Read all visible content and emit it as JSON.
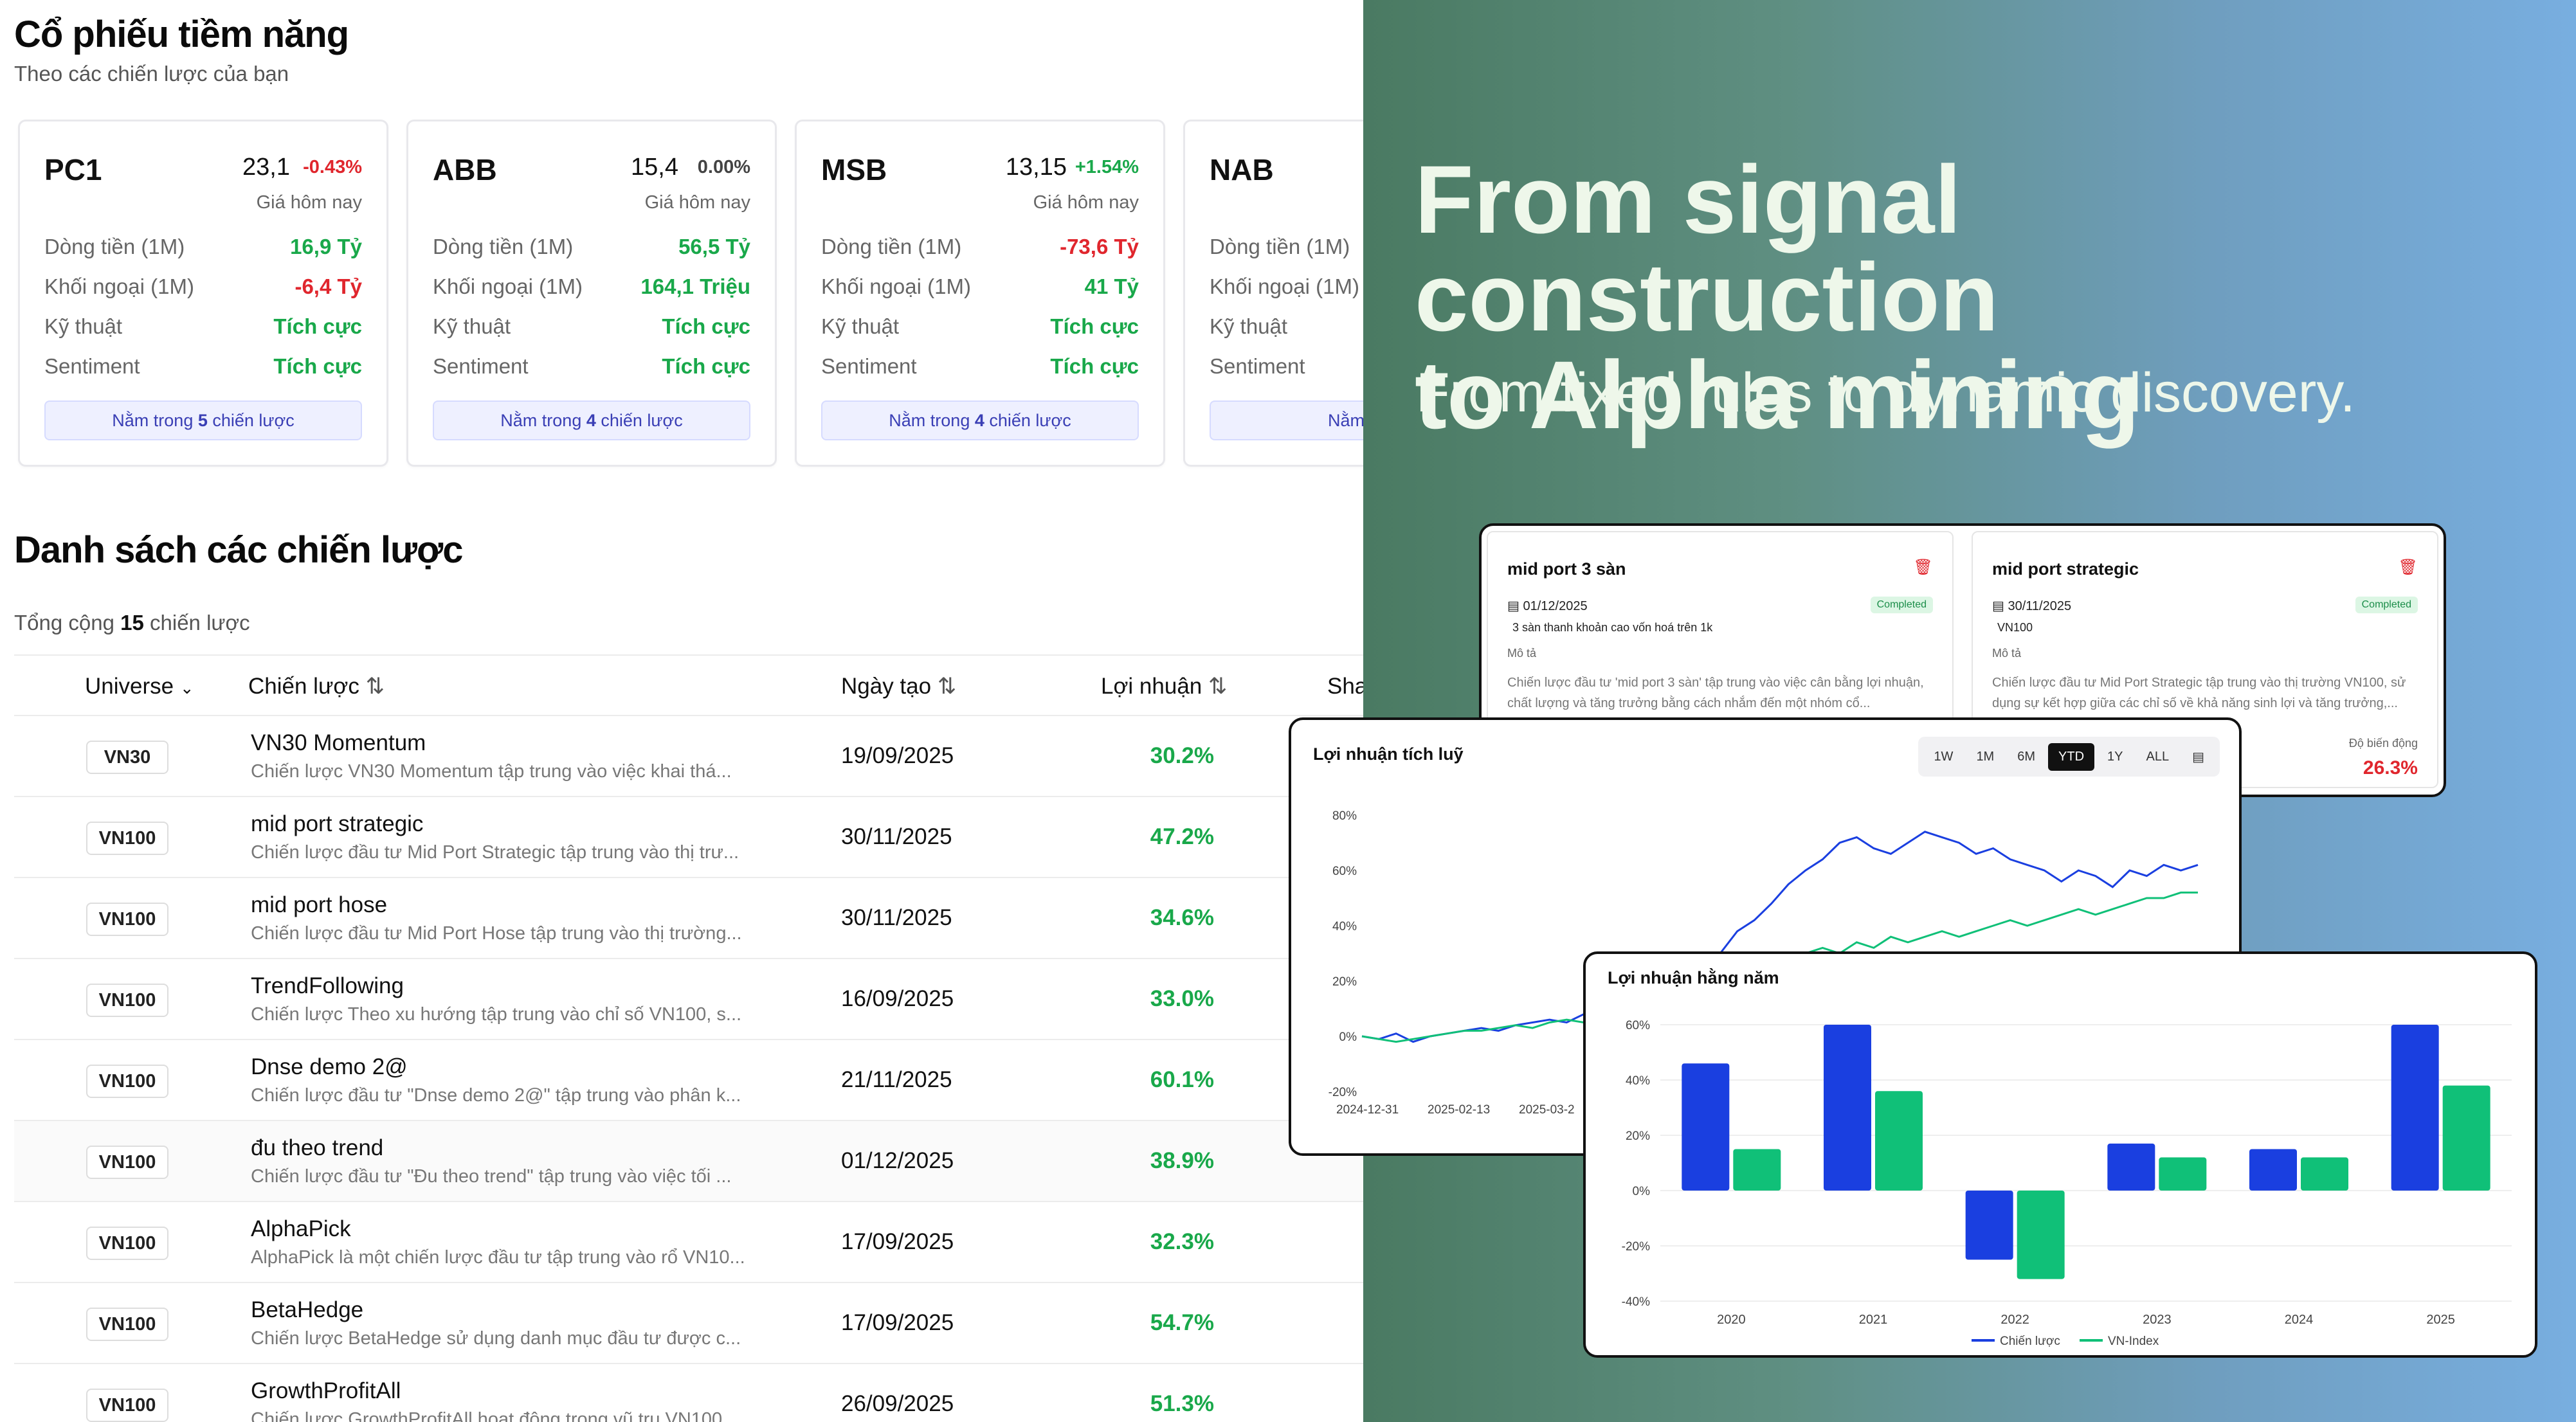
{
  "app": {
    "title": "Cổ phiếu tiềm năng",
    "subtitle": "Theo các chiến lược của bạn",
    "cards": [
      {
        "symbol": "PC1",
        "price": "23,1",
        "change": "-0.43%",
        "change_color": "#e0262d",
        "price_label": "Giá hôm nay",
        "rows": [
          {
            "label": "Dòng tiền (1M)",
            "value": "16,9 Tỷ",
            "color": "#19a84a"
          },
          {
            "label": "Khối ngoại (1M)",
            "value": "-6,4 Tỷ",
            "color": "#e0262d"
          },
          {
            "label": "Kỹ thuật",
            "value": "Tích cực",
            "color": "#19a84a"
          },
          {
            "label": "Sentiment",
            "value": "Tích cực",
            "color": "#19a84a"
          }
        ],
        "badge_prefix": "Nằm trong ",
        "badge_count": "5",
        "badge_suffix": " chiến lược"
      },
      {
        "symbol": "ABB",
        "price": "15,4",
        "change": "0.00%",
        "change_color": "#444444",
        "price_label": "Giá hôm nay",
        "rows": [
          {
            "label": "Dòng tiền (1M)",
            "value": "56,5 Tỷ",
            "color": "#19a84a"
          },
          {
            "label": "Khối ngoại (1M)",
            "value": "164,1 Triệu",
            "color": "#19a84a"
          },
          {
            "label": "Kỹ thuật",
            "value": "Tích cực",
            "color": "#19a84a"
          },
          {
            "label": "Sentiment",
            "value": "Tích cực",
            "color": "#19a84a"
          }
        ],
        "badge_prefix": "Nằm trong ",
        "badge_count": "4",
        "badge_suffix": " chiến lược"
      },
      {
        "symbol": "MSB",
        "price": "13,15",
        "change": "+1.54%",
        "change_color": "#19a84a",
        "price_label": "Giá hôm nay",
        "rows": [
          {
            "label": "Dòng tiền (1M)",
            "value": "-73,6 Tỷ",
            "color": "#e0262d"
          },
          {
            "label": "Khối ngoại (1M)",
            "value": "41 Tỷ",
            "color": "#19a84a"
          },
          {
            "label": "Kỹ thuật",
            "value": "Tích cực",
            "color": "#19a84a"
          },
          {
            "label": "Sentiment",
            "value": "Tích cực",
            "color": "#19a84a"
          }
        ],
        "badge_prefix": "Nằm trong ",
        "badge_count": "4",
        "badge_suffix": " chiến lược"
      },
      {
        "symbol": "NAB",
        "price": "",
        "change": "",
        "change_color": "#19a84a",
        "price_label": "",
        "rows": [
          {
            "label": "Dòng tiền (1M)",
            "value": "",
            "color": "#19a84a"
          },
          {
            "label": "Khối ngoại (1M)",
            "value": "",
            "color": "#19a84a"
          },
          {
            "label": "Kỹ thuật",
            "value": "",
            "color": "#19a84a"
          },
          {
            "label": "Sentiment",
            "value": "",
            "color": "#19a84a"
          }
        ],
        "badge_prefix": "Nằm trong",
        "badge_count": "",
        "badge_suffix": ""
      }
    ],
    "strategies_title": "Danh sách các chiến lược",
    "total_prefix": "Tổng cộng ",
    "total_count": "15",
    "total_suffix": " chiến lược",
    "columns": {
      "universe": "Universe",
      "strategy": "Chiến lược",
      "created": "Ngày tạo",
      "return": "Lợi nhuận",
      "sharpe": "Sha"
    },
    "rows": [
      {
        "universe": "VN30",
        "name": "VN30 Momentum",
        "desc": "Chiến lược VN30 Momentum tập trung vào việc khai thá...",
        "date": "19/09/2025",
        "ret": "30.2%"
      },
      {
        "universe": "VN100",
        "name": "mid port strategic",
        "desc": "Chiến lược đầu tư Mid Port Strategic tập trung vào thị trư...",
        "date": "30/11/2025",
        "ret": "47.2%"
      },
      {
        "universe": "VN100",
        "name": "mid port hose",
        "desc": "Chiến lược đầu tư Mid Port Hose tập trung vào thị trường...",
        "date": "30/11/2025",
        "ret": "34.6%"
      },
      {
        "universe": "VN100",
        "name": "TrendFollowing",
        "desc": "Chiến lược Theo xu hướng tập trung vào chỉ số VN100, s...",
        "date": "16/09/2025",
        "ret": "33.0%"
      },
      {
        "universe": "VN100",
        "name": "Dnse demo 2@",
        "desc": "Chiến lược đầu tư \"Dnse demo 2@\" tập trung vào phân k...",
        "date": "21/11/2025",
        "ret": "60.1%"
      },
      {
        "universe": "VN100",
        "name": "đu theo trend",
        "desc": "Chiến lược đầu tư \"Đu theo trend\" tập trung vào việc tối ...",
        "date": "01/12/2025",
        "ret": "38.9%"
      },
      {
        "universe": "VN100",
        "name": "AlphaPick",
        "desc": "AlphaPick là một chiến lược đầu tư tập trung vào rổ VN10...",
        "date": "17/09/2025",
        "ret": "32.3%"
      },
      {
        "universe": "VN100",
        "name": "BetaHedge",
        "desc": "Chiến lược BetaHedge sử dụng danh mục đầu tư được c...",
        "date": "17/09/2025",
        "ret": "54.7%"
      },
      {
        "universe": "VN100",
        "name": "GrowthProfitAll",
        "desc": "Chiến lược GrowthProfitAll hoạt động trong vũ trụ VN100...",
        "date": "26/09/2025",
        "ret": "51.3%"
      }
    ]
  },
  "hero": {
    "title_line1": "From signal construction",
    "title_line2": "to Alpha mining",
    "subtitle": "From fixed rules to dynamic discovery."
  },
  "strategy_cards": [
    {
      "title": "mid port 3 sàn",
      "date": "01/12/2025",
      "status": "Completed",
      "tag": "3 sàn thanh khoản cao vốn hoá trên 1k",
      "mota_label": "Mô tả",
      "desc": "Chiến lược đầu tư 'mid port 3 sàn' tập trung vào việc cân bằng lợi nhuận, chất lượng và tăng trưởng bằng cách nhắm đến một nhóm cổ..."
    },
    {
      "title": "mid port strategic",
      "date": "30/11/2025",
      "status": "Completed",
      "tag": "VN100",
      "mota_label": "Mô tả",
      "desc": "Chiến lược đầu tư Mid Port Strategic tập trung vào thị trường VN100, sử dụng sự kết hợp giữa các chỉ số về khả năng sinh lợi và tăng trưởng,...",
      "vol_label": "Độ biến động",
      "vol_value": "26.3%"
    }
  ],
  "icons": {
    "trash": "trash-icon",
    "calendar": "calendar-icon",
    "sort": "sort-icon",
    "chevron": "chevron-down-icon"
  },
  "colors": {
    "accent_blue": "#1a3fe0",
    "accent_green": "#10c078",
    "positive": "#19a84a",
    "negative": "#e0262d"
  },
  "chart_data": [
    {
      "type": "line",
      "title": "Lợi nhuận tích luỹ",
      "timeframes": [
        "1W",
        "1M",
        "6M",
        "YTD",
        "1Y",
        "ALL"
      ],
      "active_timeframe": "YTD",
      "y_ticks": [
        "80%",
        "60%",
        "40%",
        "20%",
        "0%",
        "-20%"
      ],
      "ylim": [
        -20,
        80
      ],
      "x_ticks": [
        "2024-12-31",
        "2025-02-13",
        "2025-03-2"
      ],
      "series": [
        {
          "color": "#1a3fe0",
          "values": [
            0,
            -1,
            1,
            -2,
            0,
            1,
            2,
            3,
            2,
            4,
            5,
            6,
            5,
            8,
            10,
            12,
            11,
            14,
            18,
            22,
            26,
            30,
            38,
            42,
            48,
            55,
            60,
            64,
            70,
            72,
            68,
            66,
            70,
            74,
            72,
            70,
            66,
            68,
            64,
            62,
            60,
            56,
            60,
            58,
            54,
            60,
            58,
            62,
            60,
            62
          ]
        },
        {
          "color": "#10c078",
          "values": [
            0,
            -1,
            -2,
            -1,
            0,
            1,
            2,
            2,
            3,
            4,
            3,
            5,
            6,
            5,
            7,
            8,
            9,
            10,
            12,
            14,
            16,
            18,
            20,
            22,
            26,
            28,
            30,
            32,
            30,
            34,
            32,
            36,
            34,
            36,
            38,
            36,
            38,
            40,
            42,
            40,
            42,
            44,
            46,
            44,
            46,
            48,
            50,
            50,
            52,
            52
          ]
        }
      ]
    },
    {
      "type": "bar",
      "title": "Lợi nhuận hằng năm",
      "categories": [
        "2020",
        "2021",
        "2022",
        "2023",
        "2024",
        "2025"
      ],
      "y_ticks": [
        "60%",
        "40%",
        "20%",
        "0%",
        "-20%",
        "-40%"
      ],
      "ylim": [
        -40,
        60
      ],
      "series": [
        {
          "name": "Chiến lược",
          "color": "#1a3fe0",
          "values": [
            46,
            60,
            -25,
            17,
            15,
            60
          ]
        },
        {
          "name": "VN-Index",
          "color": "#10c078",
          "values": [
            15,
            36,
            -32,
            12,
            12,
            38
          ]
        }
      ]
    }
  ]
}
